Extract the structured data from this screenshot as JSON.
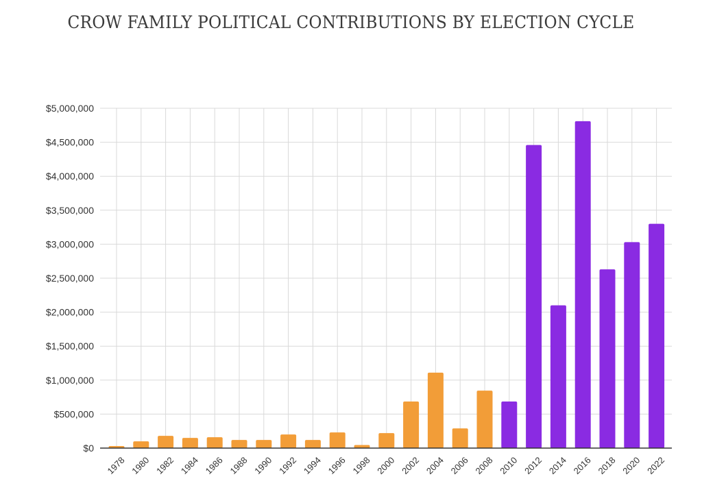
{
  "chart_data": {
    "type": "bar",
    "title": "CROW FAMILY POLITICAL CONTRIBUTIONS BY ELECTION CYCLE",
    "xlabel": "",
    "ylabel": "",
    "ylim": [
      0,
      5000000
    ],
    "yticks": [
      0,
      500000,
      1000000,
      1500000,
      2000000,
      2500000,
      3000000,
      3500000,
      4000000,
      4500000,
      5000000
    ],
    "ytick_labels": [
      "$0",
      "$500,000",
      "$1,000,000",
      "$1,500,000",
      "$2,000,000",
      "$2,500,000",
      "$3,000,000",
      "$3,500,000",
      "$4,000,000",
      "$4,500,000",
      "$5,000,000"
    ],
    "grid": true,
    "legend": "none",
    "categories": [
      "1978",
      "1980",
      "1982",
      "1984",
      "1986",
      "1988",
      "1990",
      "1992",
      "1994",
      "1996",
      "1998",
      "2000",
      "2002",
      "2004",
      "2006",
      "2008",
      "2010",
      "2012",
      "2014",
      "2016",
      "2018",
      "2020",
      "2022"
    ],
    "values": [
      30000,
      100000,
      180000,
      150000,
      160000,
      120000,
      120000,
      200000,
      120000,
      230000,
      45000,
      220000,
      685000,
      1110000,
      290000,
      845000,
      685000,
      4460000,
      2100000,
      4810000,
      2630000,
      3030000,
      3300000
    ],
    "bar_colors": [
      "#F29D38",
      "#F29D38",
      "#F29D38",
      "#F29D38",
      "#F29D38",
      "#F29D38",
      "#F29D38",
      "#F29D38",
      "#F29D38",
      "#F29D38",
      "#F29D38",
      "#F29D38",
      "#F29D38",
      "#F29D38",
      "#F29D38",
      "#F29D38",
      "#8A2BE2",
      "#8A2BE2",
      "#8A2BE2",
      "#8A2BE2",
      "#8A2BE2",
      "#8A2BE2",
      "#8A2BE2"
    ],
    "colors": {
      "early": "#F29D38",
      "recent": "#8A2BE2"
    }
  }
}
